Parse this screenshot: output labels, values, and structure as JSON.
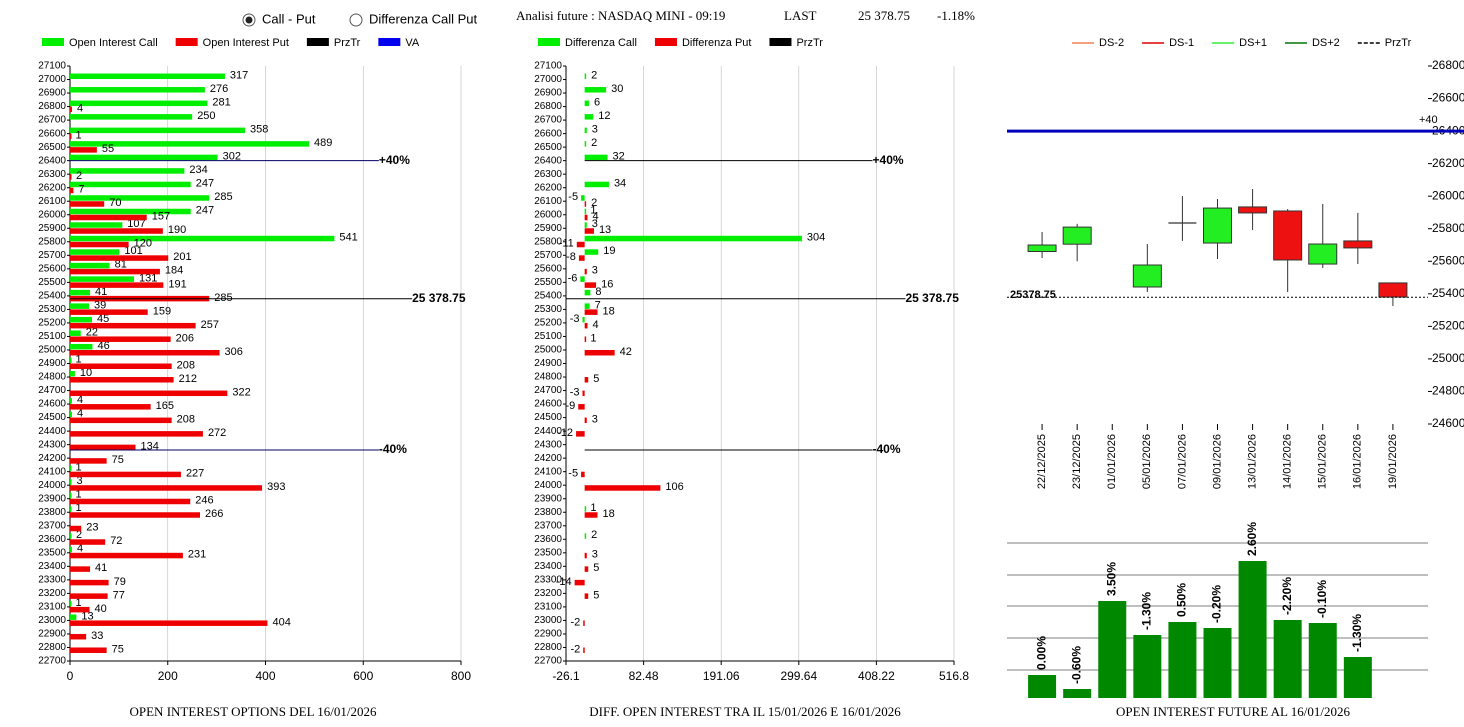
{
  "header": {
    "radio_options": [
      "Call - Put",
      "Differenza Call Put"
    ],
    "selected": 0,
    "instrument": "Analisi future : NASDAQ MINI - 09:19",
    "last_label": "LAST",
    "last": "25 378.75",
    "change": "-1.18%"
  },
  "chart_data": [
    {
      "type": "hbar",
      "title": "OPEN INTEREST OPTIONS DEL 16/01/2026",
      "categories": [
        27100,
        27000,
        26900,
        26800,
        26700,
        26600,
        26500,
        26400,
        26300,
        26200,
        26100,
        26000,
        25900,
        25800,
        25700,
        25600,
        25500,
        25400,
        25300,
        25200,
        25100,
        25000,
        24900,
        24800,
        24700,
        24600,
        24500,
        24400,
        24300,
        24200,
        24100,
        24000,
        23900,
        23800,
        23700,
        23600,
        23500,
        23400,
        23300,
        23200,
        23100,
        23000,
        22900,
        22800,
        22700
      ],
      "ylim": [
        22700,
        27100
      ],
      "xlim": [
        0,
        800
      ],
      "xticks": [
        0,
        200,
        400,
        600,
        800
      ],
      "grid": true,
      "series": [
        {
          "name": "Open Interest Call",
          "color": "#00ee00",
          "values": [
            null,
            317,
            276,
            281,
            250,
            358,
            489,
            302,
            234,
            247,
            285,
            247,
            107,
            541,
            101,
            81,
            131,
            41,
            39,
            45,
            22,
            46,
            1,
            10,
            null,
            4,
            4,
            null,
            null,
            null,
            1,
            3,
            1,
            1,
            null,
            2,
            4,
            null,
            null,
            null,
            1,
            13,
            null,
            null,
            null
          ]
        },
        {
          "name": "Open Interest Put",
          "color": "#ee0000",
          "values": [
            null,
            null,
            null,
            4,
            null,
            1,
            55,
            null,
            2,
            7,
            70,
            157,
            190,
            120,
            201,
            184,
            191,
            285,
            159,
            257,
            206,
            306,
            208,
            212,
            322,
            165,
            208,
            272,
            134,
            75,
            227,
            393,
            246,
            266,
            23,
            72,
            231,
            41,
            79,
            77,
            40,
            404,
            33,
            75,
            null
          ]
        }
      ],
      "legend_extra": [
        {
          "name": "PrzTr",
          "color": "#000000"
        },
        {
          "name": "VA",
          "color": "#0000ee"
        }
      ],
      "ref_lines": [
        {
          "value": 26400,
          "label": "+40%",
          "color": "#000066"
        },
        {
          "value": 25378.75,
          "label": "25 378.75",
          "color": "#000000"
        },
        {
          "value": 24260,
          "label": "-40%",
          "color": "#000066"
        }
      ]
    },
    {
      "type": "hbar",
      "title": "DIFF. OPEN INTEREST TRA IL 15/01/2026 E 16/01/2026",
      "categories": [
        27100,
        27000,
        26900,
        26800,
        26700,
        26600,
        26500,
        26400,
        26300,
        26200,
        26100,
        26000,
        25900,
        25800,
        25700,
        25600,
        25500,
        25400,
        25300,
        25200,
        25100,
        25000,
        24900,
        24800,
        24700,
        24600,
        24500,
        24400,
        24300,
        24200,
        24100,
        24000,
        23900,
        23800,
        23700,
        23600,
        23500,
        23400,
        23300,
        23200,
        23100,
        23000,
        22900,
        22800,
        22700
      ],
      "ylim": [
        22700,
        27100
      ],
      "xlim": [
        -26.1,
        516.8
      ],
      "xticks": [
        -26.1,
        82.48,
        191.06,
        299.64,
        408.22,
        516.8
      ],
      "grid": true,
      "series": [
        {
          "name": "Differenza Call",
          "color": "#00ee00",
          "values": [
            null,
            2,
            30,
            6,
            12,
            3,
            2,
            32,
            null,
            34,
            -5,
            1,
            3,
            304,
            19,
            null,
            -6,
            8,
            7,
            -3,
            null,
            null,
            null,
            null,
            null,
            null,
            null,
            null,
            null,
            null,
            null,
            null,
            null,
            1,
            null,
            2,
            null,
            null,
            null,
            null,
            null,
            null,
            null,
            null,
            null
          ]
        },
        {
          "name": "Differenza Put",
          "color": "#ee0000",
          "values": [
            null,
            null,
            null,
            null,
            null,
            null,
            null,
            null,
            null,
            null,
            2,
            4,
            13,
            -11,
            -8,
            3,
            16,
            null,
            18,
            4,
            1,
            42,
            null,
            5,
            -3,
            -9,
            3,
            -12,
            null,
            null,
            -5,
            106,
            null,
            18,
            null,
            null,
            3,
            5,
            -14,
            5,
            null,
            -2,
            null,
            -2,
            null
          ]
        }
      ],
      "legend_extra": [
        {
          "name": "PrzTr",
          "color": "#000000"
        }
      ],
      "ref_lines": [
        {
          "value": 26400,
          "label": "+40%",
          "color": "#000000"
        },
        {
          "value": 25378.75,
          "label": "25 378.75",
          "color": "#000000"
        },
        {
          "value": 24260,
          "label": "-40%",
          "color": "#000000"
        }
      ]
    },
    {
      "type": "candlestick",
      "categories": [
        "22/12/2025",
        "23/12/2025",
        "01/01/2026",
        "05/01/2026",
        "07/01/2026",
        "09/01/2026",
        "13/01/2026",
        "14/01/2026",
        "15/01/2026",
        "16/01/2026",
        "19/01/2026"
      ],
      "open": [
        25660,
        25705,
        null,
        25442,
        25835,
        25712,
        25934,
        25909,
        25583,
        25725,
        25467
      ],
      "high": [
        25780,
        25830,
        null,
        25706,
        26001,
        25983,
        26044,
        25921,
        25952,
        25897,
        25467
      ],
      "low": [
        25620,
        25600,
        null,
        25411,
        25725,
        25614,
        25792,
        25411,
        25559,
        25583,
        25325
      ],
      "close": [
        25700,
        25810,
        null,
        25577,
        25835,
        25927,
        25897,
        25608,
        25706,
        25682,
        25380
      ],
      "up_color": "#22ee22",
      "down_color": "#ee1111",
      "ylim": [
        24600,
        26800
      ],
      "yticks": [
        24600,
        24800,
        25000,
        25200,
        25400,
        25600,
        25800,
        26000,
        26200,
        26400,
        26600,
        26800
      ],
      "legend": [
        {
          "name": "DS-2",
          "color": "#f08050",
          "dash": false
        },
        {
          "name": "DS-1",
          "color": "#dd0000",
          "dash": false
        },
        {
          "name": "DS+1",
          "color": "#33ee33",
          "dash": false
        },
        {
          "name": "DS+2",
          "color": "#007700",
          "dash": false
        },
        {
          "name": "PrzTr",
          "color": "#000000",
          "dash": true
        }
      ],
      "ref_lines": [
        {
          "value": 26400,
          "label": "+40",
          "color": "#0000bb"
        },
        {
          "value": 25378.75,
          "label": "25378.75",
          "color": "#000000"
        }
      ]
    },
    {
      "type": "bar",
      "title": "OPEN INTEREST FUTURE AL 16/01/2026",
      "values": [
        23,
        9,
        97,
        63,
        76,
        70,
        137,
        78,
        75,
        41
      ],
      "labels": [
        "0.00%",
        "-0.60%",
        "3.50%",
        "-1.30%",
        "0.50%",
        "-0.20%",
        "2.60%",
        "-2.20%",
        "-0.10%",
        "-1.30%"
      ],
      "color": "#008800",
      "ylim": [
        0,
        155
      ]
    }
  ]
}
